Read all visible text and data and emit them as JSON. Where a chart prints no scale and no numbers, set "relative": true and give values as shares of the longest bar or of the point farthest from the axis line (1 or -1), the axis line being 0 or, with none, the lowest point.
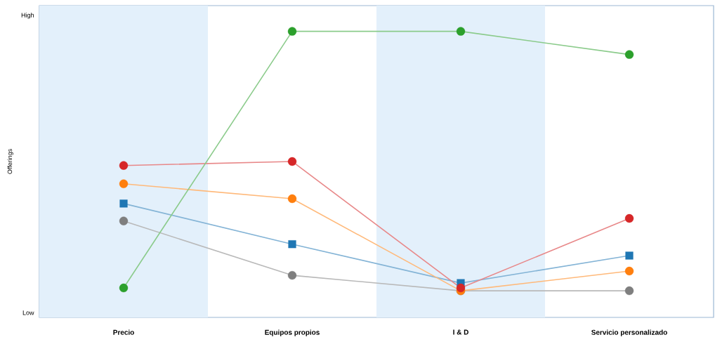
{
  "chart_data": {
    "type": "line",
    "relative": true,
    "ylabel": "Offerings",
    "annotations": [
      "High",
      "Low"
    ],
    "categories": [
      "Precio",
      "Equipos propios",
      "I & D",
      "Servicio personalizado"
    ],
    "marker": "circle",
    "series": [
      {
        "color": "#2ca02c",
        "values": [
          0.103,
          1,
          1,
          0.919
        ]
      },
      {
        "color": "#d62728",
        "values": [
          0.531,
          0.545,
          0.103,
          0.346
        ]
      },
      {
        "color": "#ff7f0e",
        "values": [
          0.467,
          0.415,
          0.093,
          0.162
        ]
      },
      {
        "color": "#1f77b4",
        "marker": "square",
        "values": [
          0.398,
          0.256,
          0.12,
          0.216
        ]
      },
      {
        "color": "#7f7f7f",
        "values": [
          0.337,
          0.147,
          0.093,
          0.093
        ]
      }
    ]
  }
}
